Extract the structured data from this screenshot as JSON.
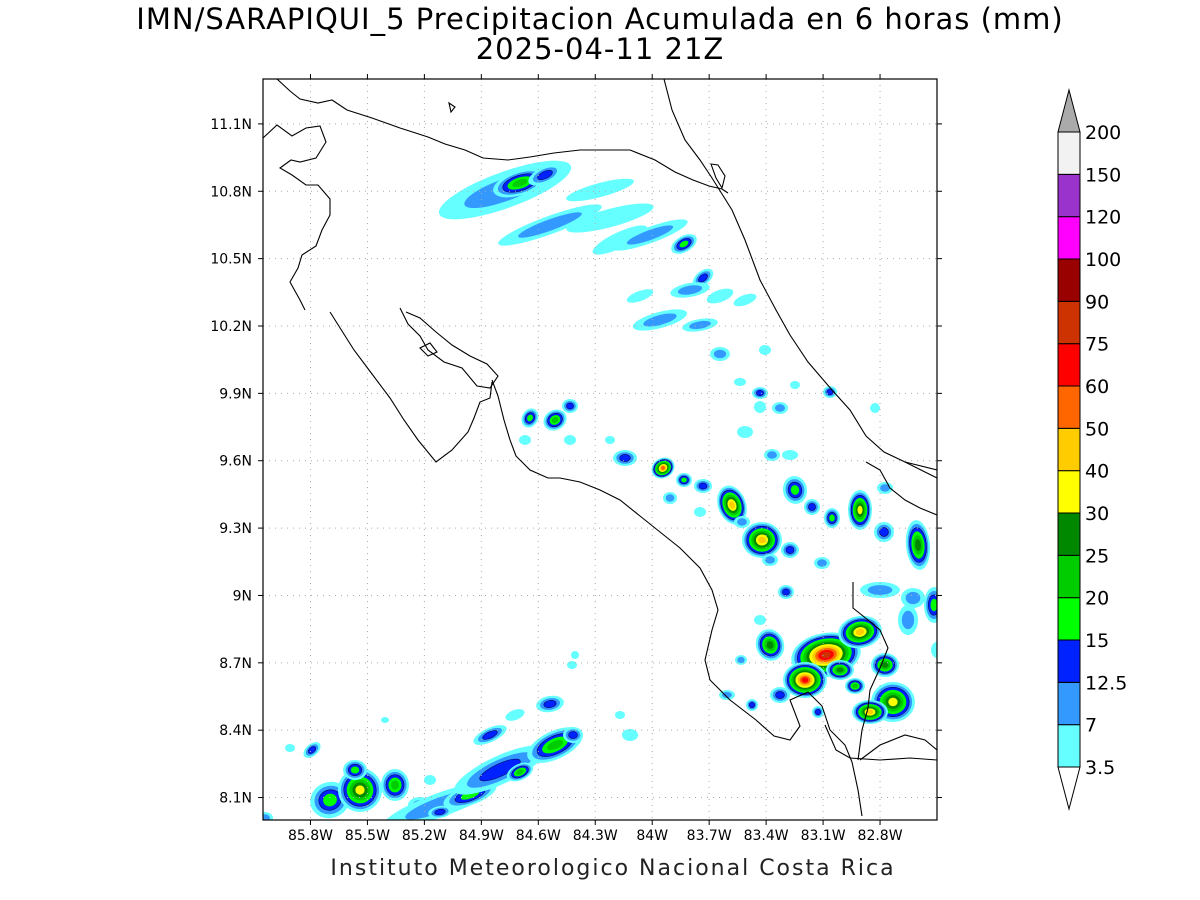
{
  "title": {
    "line1": "IMN/SARAPIQUI_5 Precipitacion Acumulada en 6 horas (mm)",
    "line2": "2025-04-11 21Z"
  },
  "footer": "Instituto Meteorologico Nacional Costa Rica",
  "map": {
    "lon_range": [
      -86.05,
      -82.5
    ],
    "lat_range": [
      8.0,
      11.3
    ],
    "lon_ticks": [
      {
        "v": -85.8,
        "label": "85.8W"
      },
      {
        "v": -85.5,
        "label": "85.5W"
      },
      {
        "v": -85.2,
        "label": "85.2W"
      },
      {
        "v": -84.9,
        "label": "84.9W"
      },
      {
        "v": -84.6,
        "label": "84.6W"
      },
      {
        "v": -84.3,
        "label": "84.3W"
      },
      {
        "v": -84.0,
        "label": "84W"
      },
      {
        "v": -83.7,
        "label": "83.7W"
      },
      {
        "v": -83.4,
        "label": "83.4W"
      },
      {
        "v": -83.1,
        "label": "83.1W"
      },
      {
        "v": -82.8,
        "label": "82.8W"
      }
    ],
    "lat_ticks": [
      {
        "v": 8.1,
        "label": "8.1N"
      },
      {
        "v": 8.4,
        "label": "8.4N"
      },
      {
        "v": 8.7,
        "label": "8.7N"
      },
      {
        "v": 9.0,
        "label": "9N"
      },
      {
        "v": 9.3,
        "label": "9.3N"
      },
      {
        "v": 9.6,
        "label": "9.6N"
      },
      {
        "v": 9.9,
        "label": "9.9N"
      },
      {
        "v": 10.2,
        "label": "10.2N"
      },
      {
        "v": 10.5,
        "label": "10.5N"
      },
      {
        "v": 10.8,
        "label": "10.8N"
      },
      {
        "v": 11.1,
        "label": "11.1N"
      }
    ],
    "grid": "dotted"
  },
  "colorbar": {
    "levels": [
      {
        "label": "3.5",
        "color": "#ffffff"
      },
      {
        "label": "7",
        "color": "#66ffff"
      },
      {
        "label": "12.5",
        "color": "#3399ff"
      },
      {
        "label": "15",
        "color": "#0022ff"
      },
      {
        "label": "20",
        "color": "#00ff00"
      },
      {
        "label": "25",
        "color": "#00cc00"
      },
      {
        "label": "30",
        "color": "#008800"
      },
      {
        "label": "40",
        "color": "#ffff00"
      },
      {
        "label": "50",
        "color": "#ffcc00"
      },
      {
        "label": "60",
        "color": "#ff6600"
      },
      {
        "label": "75",
        "color": "#ff0000"
      },
      {
        "label": "90",
        "color": "#cc3300"
      },
      {
        "label": "100",
        "color": "#990000"
      },
      {
        "label": "120",
        "color": "#ff00ff"
      },
      {
        "label": "150",
        "color": "#9933cc"
      },
      {
        "label": "200",
        "color": "#f2f2f2"
      }
    ],
    "top_arrow_color": "#aaaaaa",
    "bottom_arrow_color": "#ffffff"
  }
}
